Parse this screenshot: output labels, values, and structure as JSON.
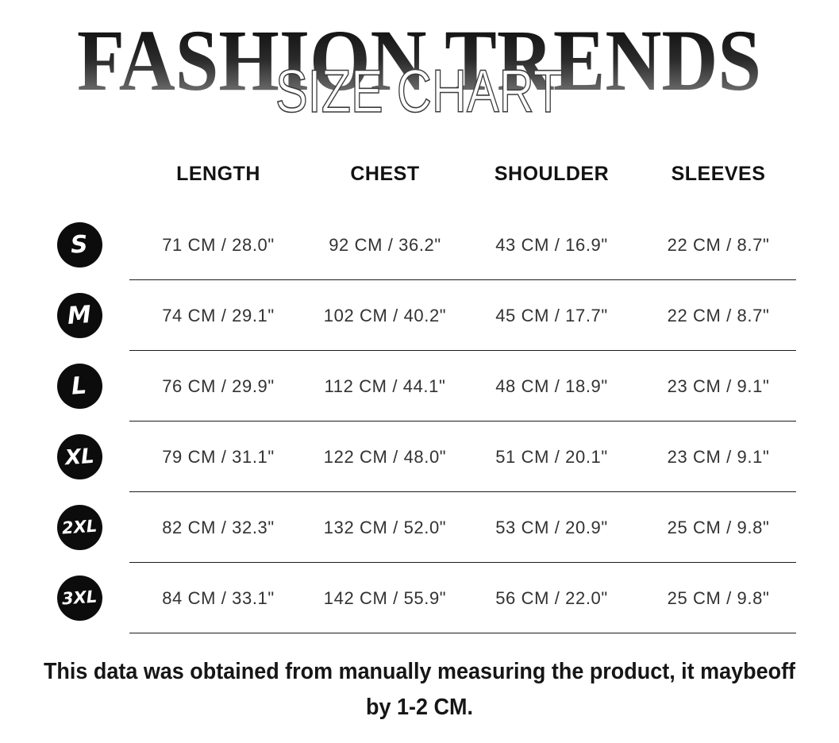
{
  "masthead": {
    "brand_title": "FASHION TRENDS",
    "subtitle": "SIZE CHART",
    "title_gradient_top": "#050505",
    "title_gradient_bottom": "#8e8e8e"
  },
  "table": {
    "headers": [
      "LENGTH",
      "CHEST",
      "SHOULDER",
      "SLEEVES"
    ],
    "rows": [
      {
        "size": "S",
        "length": "71 CM / 28.0\"",
        "chest": "92 CM / 36.2\"",
        "shoulder": "43 CM / 16.9\"",
        "sleeves": "22 CM / 8.7\""
      },
      {
        "size": "M",
        "length": "74 CM / 29.1\"",
        "chest": "102 CM / 40.2\"",
        "shoulder": "45 CM / 17.7\"",
        "sleeves": "22 CM / 8.7\""
      },
      {
        "size": "L",
        "length": "76 CM / 29.9\"",
        "chest": "112 CM / 44.1\"",
        "shoulder": "48 CM / 18.9\"",
        "sleeves": "23 CM / 9.1\""
      },
      {
        "size": "XL",
        "length": "79 CM / 31.1\"",
        "chest": "122 CM / 48.0\"",
        "shoulder": "51 CM / 20.1\"",
        "sleeves": "23 CM / 9.1\""
      },
      {
        "size": "2XL",
        "length": "82 CM / 32.3\"",
        "chest": "132 CM / 52.0\"",
        "shoulder": "53 CM / 20.9\"",
        "sleeves": "25 CM / 9.8\""
      },
      {
        "size": "3XL",
        "length": "84 CM / 33.1\"",
        "chest": "142 CM / 55.9\"",
        "shoulder": "56 CM / 22.0\"",
        "sleeves": "25 CM / 9.8\""
      }
    ]
  },
  "footer": {
    "line1": "This data was obtained from manually measuring the product, it maybeoff",
    "line2": "by 1-2 CM."
  },
  "colors": {
    "badge_background": "#0c0c0c",
    "badge_text": "#ffffff",
    "divider": "#1c1c1c",
    "body_text": "#323232"
  }
}
